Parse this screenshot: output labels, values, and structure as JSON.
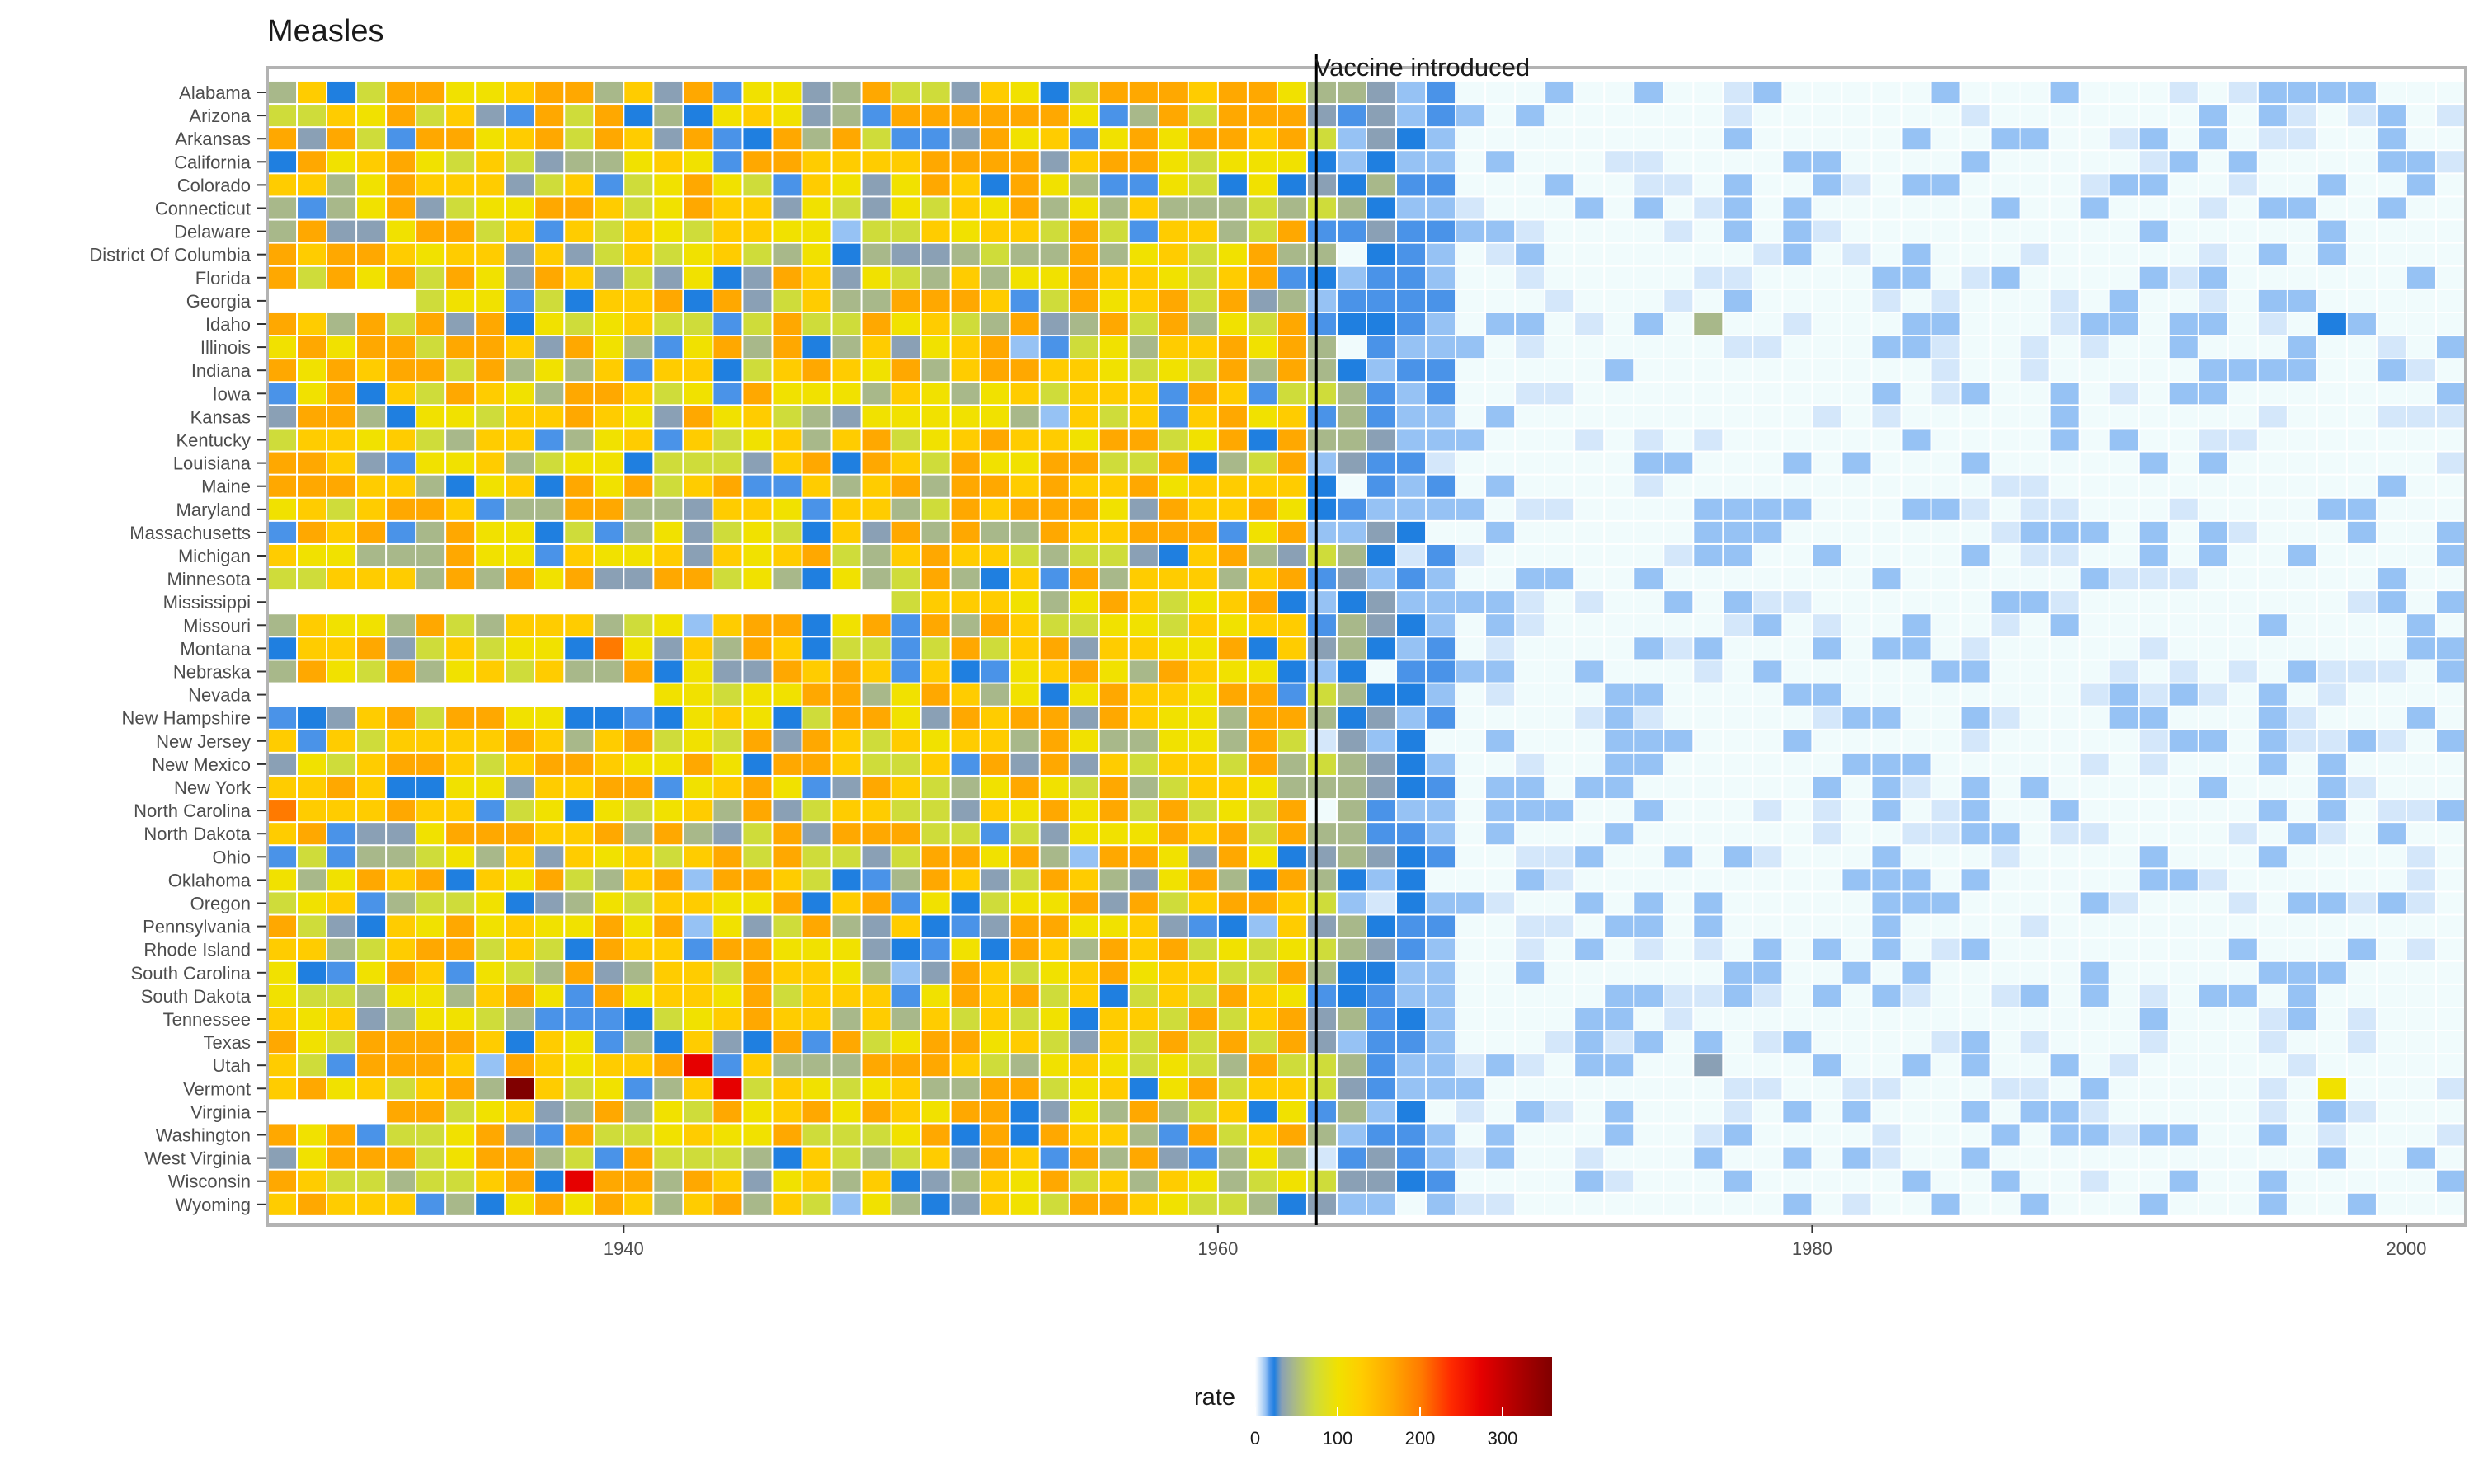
{
  "chart_data": {
    "type": "heatmap",
    "title": "Measles",
    "xlabel": "",
    "ylabel": "",
    "x_ticks": [
      1940,
      1960,
      1980,
      2000
    ],
    "xlim": [
      1928,
      2002
    ],
    "grid": false,
    "states": [
      "Alabama",
      "Arizona",
      "Arkansas",
      "California",
      "Colorado",
      "Connecticut",
      "Delaware",
      "District Of Columbia",
      "Florida",
      "Georgia",
      "Idaho",
      "Illinois",
      "Indiana",
      "Iowa",
      "Kansas",
      "Kentucky",
      "Louisiana",
      "Maine",
      "Maryland",
      "Massachusetts",
      "Michigan",
      "Minnesota",
      "Mississippi",
      "Missouri",
      "Montana",
      "Nebraska",
      "Nevada",
      "New Hampshire",
      "New Jersey",
      "New Mexico",
      "New York",
      "North Carolina",
      "North Dakota",
      "Ohio",
      "Oklahoma",
      "Oregon",
      "Pennsylvania",
      "Rhode Island",
      "South Carolina",
      "South Dakota",
      "Tennessee",
      "Texas",
      "Utah",
      "Vermont",
      "Virginia",
      "Washington",
      "West Virginia",
      "Wisconsin",
      "Wyoming"
    ],
    "annotation": {
      "label": "Vaccine introduced",
      "year": 1963
    },
    "legend": {
      "title": "rate",
      "position": "bottom",
      "ticks": [
        0,
        100,
        200,
        300
      ],
      "range": [
        0,
        360
      ],
      "colors": [
        "#ffffff",
        "#d4e7fa",
        "#96c2f4",
        "#4a93e8",
        "#1f7fe0",
        "#8aa0b5",
        "#a8b88a",
        "#cfdc3a",
        "#f1e100",
        "#ffcc00",
        "#ffa800",
        "#ff7a00",
        "#ff2a00",
        "#e60000",
        "#b00000",
        "#800000"
      ]
    },
    "value_note": "cell rates from 1928 to 2002; values for years before 1963 range roughly 20-350 per 100,000; after 1968 near 0-10",
    "highlights": [
      {
        "state": "Vermont",
        "year": 1936,
        "rate": 345
      },
      {
        "state": "Utah",
        "year": 1942,
        "rate": 260
      },
      {
        "state": "Vermont",
        "year": 1943,
        "rate": 250
      },
      {
        "state": "North Carolina",
        "year": 1928,
        "rate": 190
      },
      {
        "state": "Montana",
        "year": 1939,
        "rate": 190
      },
      {
        "state": "Wisconsin",
        "year": 1938,
        "rate": 240
      },
      {
        "state": "Idaho",
        "year": 1997,
        "rate": 25
      },
      {
        "state": "Vermont",
        "year": 1997,
        "rate": 80
      },
      {
        "state": "Idaho",
        "year": 1976,
        "rate": 40
      },
      {
        "state": "Utah",
        "year": 1976,
        "rate": 35
      }
    ]
  }
}
